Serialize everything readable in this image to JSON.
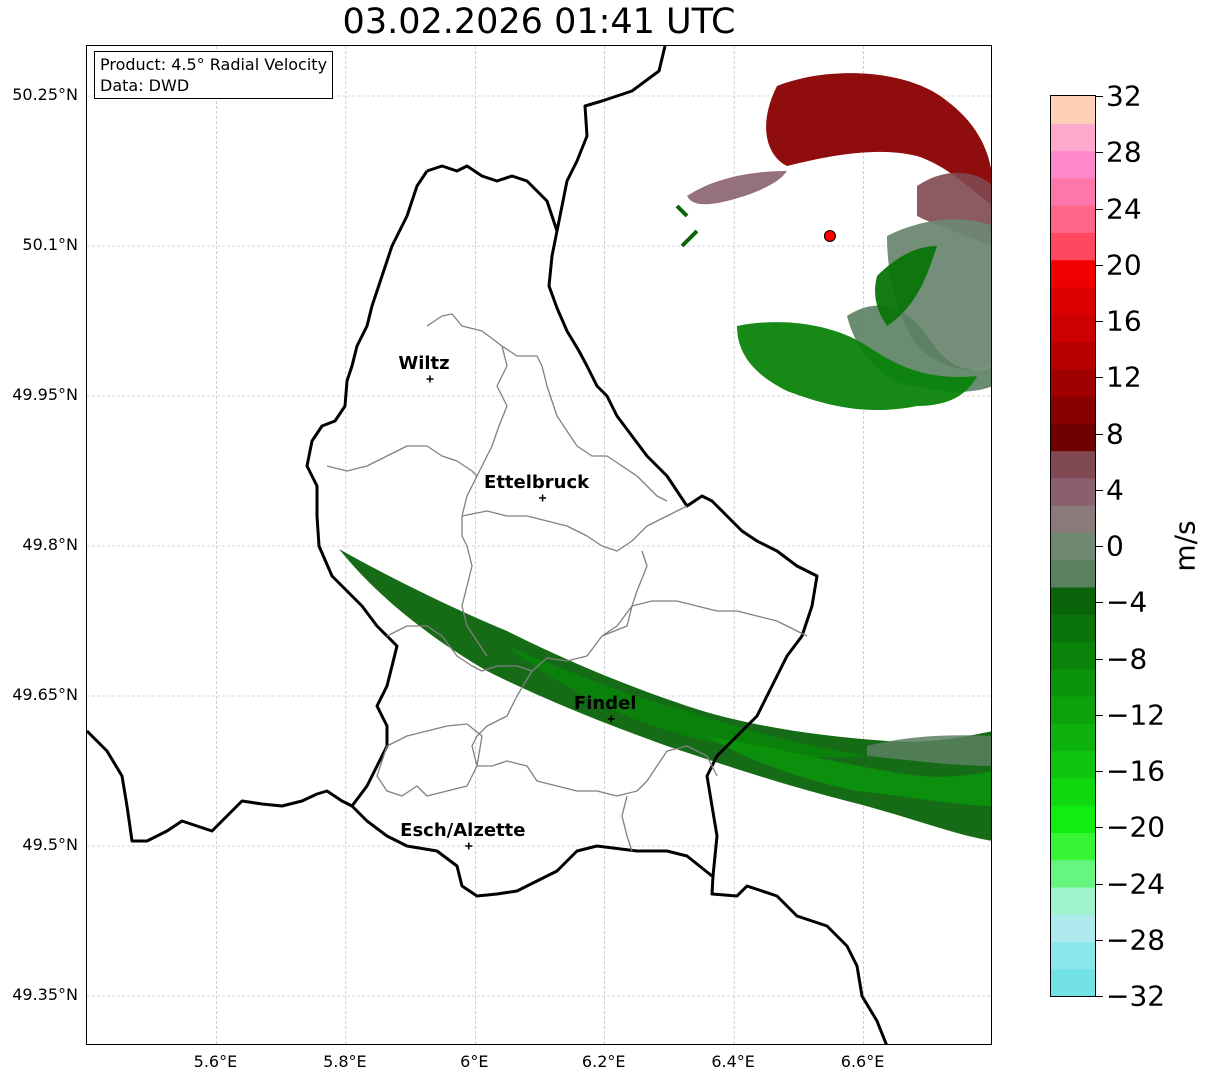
{
  "title": "03.02.2026 01:41 UTC",
  "info_box": {
    "product": "Product: 4.5° Radial Velocity",
    "data_source": "Data: DWD"
  },
  "map": {
    "lon_range": [
      5.4,
      6.8
    ],
    "lat_range": [
      49.3,
      50.3
    ],
    "lat_ticks": [
      {
        "value": 50.25,
        "label": "50.25°N"
      },
      {
        "value": 50.1,
        "label": "50.1°N"
      },
      {
        "value": 49.95,
        "label": "49.95°N"
      },
      {
        "value": 49.8,
        "label": "49.8°N"
      },
      {
        "value": 49.65,
        "label": "49.65°N"
      },
      {
        "value": 49.5,
        "label": "49.5°N"
      },
      {
        "value": 49.35,
        "label": "49.35°N"
      }
    ],
    "lon_ticks": [
      {
        "value": 5.6,
        "label": "5.6°E"
      },
      {
        "value": 5.8,
        "label": "5.8°E"
      },
      {
        "value": 6.0,
        "label": "6°E"
      },
      {
        "value": 6.2,
        "label": "6.2°E"
      },
      {
        "value": 6.4,
        "label": "6.4°E"
      },
      {
        "value": 6.6,
        "label": "6.6°E"
      }
    ],
    "cities": [
      {
        "name": "Wiltz",
        "lon": 5.93,
        "lat": 49.967
      },
      {
        "name": "Ettelbruck",
        "lon": 6.104,
        "lat": 49.848
      },
      {
        "name": "Findel",
        "lon": 6.21,
        "lat": 49.627
      },
      {
        "name": "Esch/Alzette",
        "lon": 5.99,
        "lat": 49.5
      }
    ],
    "radar_site": {
      "lon": 6.548,
      "lat": 50.11,
      "color": "#ff0000"
    }
  },
  "colorbar": {
    "unit": "m/s",
    "min": -32,
    "max": 32,
    "tick_labels": [
      "32",
      "28",
      "24",
      "20",
      "16",
      "12",
      "8",
      "4",
      "0",
      "−4",
      "−8",
      "−12",
      "−16",
      "−20",
      "−24",
      "−28",
      "−32"
    ],
    "colors_bottom_to_top": [
      "#72e2e6",
      "#8ce7ec",
      "#aee9ee",
      "#9ef2cc",
      "#66f57e",
      "#35f535",
      "#10ee10",
      "#0fd80f",
      "#0ec40e",
      "#0db20d",
      "#0ca20c",
      "#0b930b",
      "#0a830a",
      "#0a740a",
      "#096409",
      "#5a8060",
      "#6e8872",
      "#8a7a7a",
      "#8a6070",
      "#804850",
      "#700000",
      "#880000",
      "#a00000",
      "#b80000",
      "#cc0000",
      "#dd0000",
      "#f00000",
      "#ff4860",
      "#ff6688",
      "#ff77aa",
      "#ff88cc",
      "#ffaacc",
      "#ffd0b8"
    ]
  }
}
